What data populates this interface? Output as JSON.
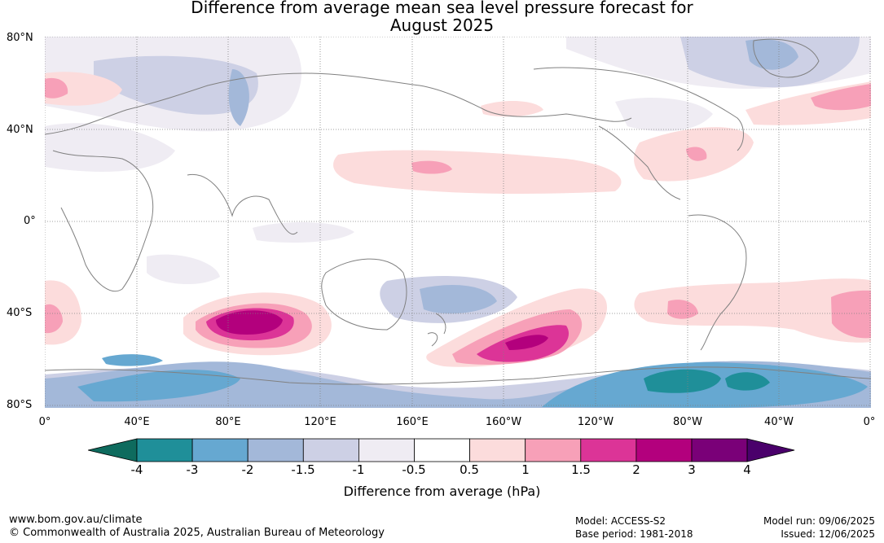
{
  "title_line1": "Difference from average mean sea level pressure forecast for",
  "title_line2": "August 2025",
  "lat_labels": [
    "80°N",
    "40°N",
    "0°",
    "40°S",
    "80°S"
  ],
  "lon_labels": [
    "0°",
    "40°E",
    "80°E",
    "120°E",
    "160°E",
    "160°W",
    "120°W",
    "80°W",
    "40°W",
    "0°"
  ],
  "colorbar": {
    "ticks": [
      "-4",
      "-3",
      "-2",
      "-1.5",
      "-1",
      "-0.5",
      "0.5",
      "1",
      "1.5",
      "2",
      "3",
      "4"
    ],
    "colors": [
      "#0e6b5e",
      "#1f8f99",
      "#66a8d1",
      "#a3b8d9",
      "#cdd0e5",
      "#efecf3",
      "#ffffff",
      "#fcdcdc",
      "#f7a0b8",
      "#dc3497",
      "#b3007d",
      "#7a0078",
      "#4a006b"
    ],
    "label": "Difference from average (hPa)"
  },
  "footer": {
    "url": "www.bom.gov.au/climate",
    "copyright": "© Commonwealth of Australia 2025, Australian Bureau of Meteorology",
    "model": "Model: ACCESS-S2",
    "base_period": "Base period: 1981-2018",
    "model_run": "Model run: 09/06/2025",
    "issued": "Issued: 12/06/2025"
  }
}
